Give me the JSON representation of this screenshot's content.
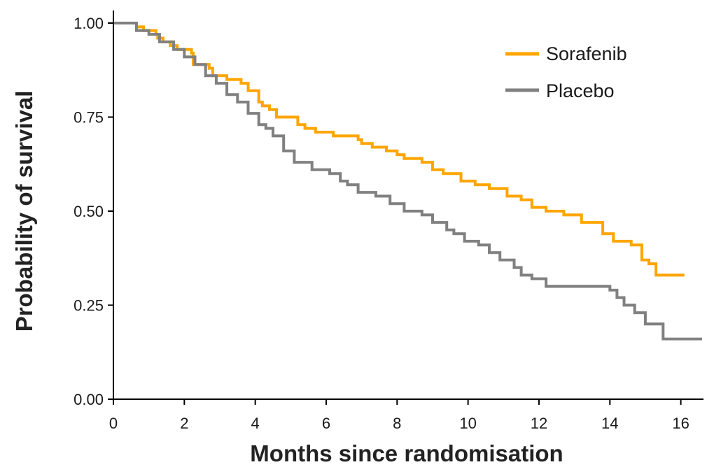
{
  "chart_data": {
    "type": "line",
    "step": true,
    "title": "",
    "xlabel": "Months since randomisation",
    "ylabel": "Probability of survival",
    "xlim": [
      0,
      16.6
    ],
    "ylim": [
      0,
      1
    ],
    "x_ticks": [
      "0",
      "2",
      "4",
      "6",
      "8",
      "10",
      "12",
      "14",
      "16"
    ],
    "x_tick_values": [
      0,
      2,
      4,
      6,
      8,
      10,
      12,
      14,
      16
    ],
    "y_ticks": [
      "0.00",
      "0.25",
      "0.50",
      "0.75",
      "1.00"
    ],
    "y_tick_values": [
      0,
      0.25,
      0.5,
      0.75,
      1.0
    ],
    "grid": false,
    "legend_position": "top-right",
    "series": [
      {
        "name": "Sorafenib",
        "color": "#FFA500",
        "points": [
          [
            0,
            1.0
          ],
          [
            0.6,
            1.0
          ],
          [
            0.65,
            0.99
          ],
          [
            0.85,
            0.98
          ],
          [
            1.2,
            0.97
          ],
          [
            1.25,
            0.96
          ],
          [
            1.4,
            0.95
          ],
          [
            1.6,
            0.94
          ],
          [
            1.8,
            0.93
          ],
          [
            2.2,
            0.92
          ],
          [
            2.25,
            0.89
          ],
          [
            2.7,
            0.88
          ],
          [
            2.8,
            0.86
          ],
          [
            3.2,
            0.85
          ],
          [
            3.6,
            0.84
          ],
          [
            3.8,
            0.82
          ],
          [
            4.1,
            0.79
          ],
          [
            4.2,
            0.78
          ],
          [
            4.4,
            0.77
          ],
          [
            4.6,
            0.75
          ],
          [
            5.2,
            0.73
          ],
          [
            5.4,
            0.72
          ],
          [
            5.7,
            0.71
          ],
          [
            6.2,
            0.7
          ],
          [
            6.9,
            0.69
          ],
          [
            7.0,
            0.68
          ],
          [
            7.3,
            0.67
          ],
          [
            7.7,
            0.66
          ],
          [
            8.0,
            0.65
          ],
          [
            8.2,
            0.64
          ],
          [
            8.7,
            0.63
          ],
          [
            9.0,
            0.61
          ],
          [
            9.3,
            0.6
          ],
          [
            9.8,
            0.58
          ],
          [
            10.2,
            0.57
          ],
          [
            10.6,
            0.56
          ],
          [
            11.1,
            0.54
          ],
          [
            11.5,
            0.53
          ],
          [
            11.8,
            0.51
          ],
          [
            12.2,
            0.5
          ],
          [
            12.7,
            0.49
          ],
          [
            13.2,
            0.47
          ],
          [
            13.8,
            0.44
          ],
          [
            14.1,
            0.42
          ],
          [
            14.6,
            0.41
          ],
          [
            14.9,
            0.37
          ],
          [
            15.1,
            0.36
          ],
          [
            15.3,
            0.33
          ],
          [
            16.1,
            0.33
          ]
        ]
      },
      {
        "name": "Placebo",
        "color": "#808080",
        "points": [
          [
            0,
            1.0
          ],
          [
            0.6,
            1.0
          ],
          [
            0.65,
            0.98
          ],
          [
            1.0,
            0.97
          ],
          [
            1.3,
            0.95
          ],
          [
            1.7,
            0.93
          ],
          [
            2.0,
            0.91
          ],
          [
            2.3,
            0.89
          ],
          [
            2.6,
            0.86
          ],
          [
            2.9,
            0.84
          ],
          [
            3.2,
            0.81
          ],
          [
            3.5,
            0.79
          ],
          [
            3.8,
            0.76
          ],
          [
            4.1,
            0.73
          ],
          [
            4.3,
            0.72
          ],
          [
            4.5,
            0.7
          ],
          [
            4.8,
            0.66
          ],
          [
            5.1,
            0.63
          ],
          [
            5.6,
            0.61
          ],
          [
            6.1,
            0.6
          ],
          [
            6.4,
            0.58
          ],
          [
            6.6,
            0.57
          ],
          [
            6.9,
            0.55
          ],
          [
            7.4,
            0.54
          ],
          [
            7.8,
            0.52
          ],
          [
            8.2,
            0.5
          ],
          [
            8.7,
            0.49
          ],
          [
            9.0,
            0.47
          ],
          [
            9.4,
            0.45
          ],
          [
            9.6,
            0.44
          ],
          [
            9.9,
            0.42
          ],
          [
            10.3,
            0.41
          ],
          [
            10.6,
            0.39
          ],
          [
            10.9,
            0.37
          ],
          [
            11.3,
            0.35
          ],
          [
            11.5,
            0.33
          ],
          [
            11.8,
            0.32
          ],
          [
            12.2,
            0.3
          ],
          [
            14.0,
            0.29
          ],
          [
            14.2,
            0.27
          ],
          [
            14.4,
            0.25
          ],
          [
            14.7,
            0.23
          ],
          [
            15.0,
            0.2
          ],
          [
            15.5,
            0.16
          ],
          [
            16.6,
            0.16
          ]
        ]
      }
    ]
  }
}
